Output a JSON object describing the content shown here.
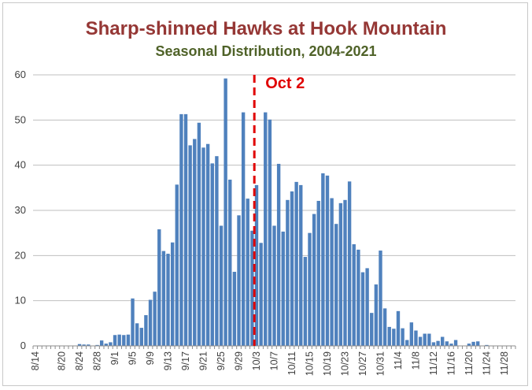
{
  "chart_data": {
    "type": "bar",
    "title": "Sharp-shinned Hawks at Hook Mountain",
    "subtitle": "Seasonal Distribution, 2004-2021",
    "ylim": [
      0,
      60
    ],
    "yticks": [
      0,
      10,
      20,
      30,
      40,
      50,
      60
    ],
    "grid": true,
    "bar_color": "#4f81bd",
    "categories": [
      "8/14",
      "8/15",
      "8/16",
      "8/17",
      "8/18",
      "8/19",
      "8/20",
      "8/21",
      "8/22",
      "8/23",
      "8/24",
      "8/25",
      "8/26",
      "8/27",
      "8/28",
      "8/29",
      "8/30",
      "8/31",
      "9/1",
      "9/2",
      "9/3",
      "9/4",
      "9/5",
      "9/6",
      "9/7",
      "9/8",
      "9/9",
      "9/10",
      "9/11",
      "9/12",
      "9/13",
      "9/14",
      "9/15",
      "9/16",
      "9/17",
      "9/18",
      "9/19",
      "9/20",
      "9/21",
      "9/22",
      "9/23",
      "9/24",
      "9/25",
      "9/26",
      "9/27",
      "9/28",
      "9/29",
      "9/30",
      "10/1",
      "10/2",
      "10/3",
      "10/4",
      "10/5",
      "10/6",
      "10/7",
      "10/8",
      "10/9",
      "10/10",
      "10/11",
      "10/12",
      "10/13",
      "10/14",
      "10/15",
      "10/16",
      "10/17",
      "10/18",
      "10/19",
      "10/20",
      "10/21",
      "10/22",
      "10/23",
      "10/24",
      "10/25",
      "10/26",
      "10/27",
      "10/28",
      "10/29",
      "10/30",
      "10/31",
      "11/1",
      "11/2",
      "11/3",
      "11/4",
      "11/5",
      "11/6",
      "11/7",
      "11/8",
      "11/9",
      "11/10",
      "11/11",
      "11/12",
      "11/13",
      "11/14",
      "11/15",
      "11/16",
      "11/17",
      "11/18",
      "11/19",
      "11/20",
      "11/21",
      "11/22",
      "11/23",
      "11/24",
      "11/25",
      "11/26",
      "11/27",
      "11/28",
      "11/29",
      "11/30"
    ],
    "xtick_labels": [
      "8/14",
      "8/20",
      "8/24",
      "8/28",
      "9/1",
      "9/5",
      "9/9",
      "9/13",
      "9/17",
      "9/21",
      "9/25",
      "9/29",
      "10/3",
      "10/7",
      "10/11",
      "10/15",
      "10/19",
      "10/23",
      "10/27",
      "10/31",
      "11/4",
      "11/8",
      "11/12",
      "11/16",
      "11/20",
      "11/24",
      "11/28"
    ],
    "values": [
      0,
      0,
      0,
      0,
      0,
      0,
      0,
      0,
      0,
      0,
      0.4,
      0.3,
      0.3,
      0,
      0.2,
      1.2,
      0.5,
      0.8,
      2.4,
      2.5,
      2.4,
      2.5,
      10.5,
      5,
      4,
      6.8,
      10.2,
      12,
      25.8,
      21,
      20.4,
      22.9,
      35.7,
      51.3,
      51.3,
      44.4,
      45.8,
      49.4,
      43.9,
      44.7,
      40.4,
      42,
      26.6,
      59.2,
      36.8,
      16.4,
      28.9,
      51.7,
      32.6,
      25.5,
      35.6,
      22.8,
      51.7,
      50.1,
      26.6,
      40.3,
      25.3,
      32.3,
      34.2,
      36.3,
      35.6,
      19.7,
      25,
      29.2,
      32.1,
      38.2,
      37.7,
      32.7,
      27,
      31.6,
      32.3,
      36.4,
      22.5,
      21.3,
      16.3,
      17.2,
      7.3,
      13.6,
      21.1,
      8.3,
      4.2,
      3.8,
      7.7,
      3.9,
      1.3,
      5.2,
      3.4,
      2,
      2.7,
      2.7,
      0.8,
      1.1,
      2,
      1,
      0.5,
      1.3,
      0,
      0,
      0.5,
      0.9,
      1,
      0,
      0.2,
      0,
      0,
      0,
      0,
      0,
      0
    ],
    "annotations": [
      {
        "type": "vline",
        "category": "10/2",
        "label": "Oct 2",
        "color": "#e00000",
        "style": "dashed"
      }
    ]
  }
}
